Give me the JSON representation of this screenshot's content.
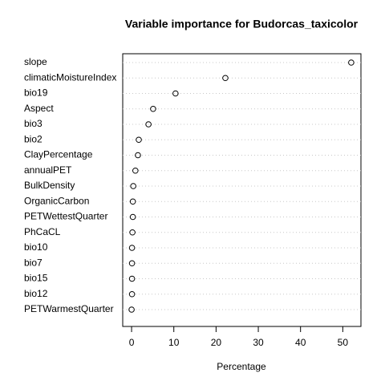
{
  "chart_data": {
    "type": "dot",
    "title": "Variable importance for Budorcas_taxicolor",
    "x_label": "Percentage",
    "categories": [
      "slope",
      "climaticMoistureIndex",
      "bio19",
      "Aspect",
      "bio3",
      "bio2",
      "ClayPercentage",
      "annualPET",
      "BulkDensity",
      "OrganicCarbon",
      "PETWettestQuarter",
      "PhCaCL",
      "bio10",
      "bio7",
      "bio15",
      "bio12",
      "PETWarmestQuarter"
    ],
    "values": [
      52.0,
      22.2,
      10.4,
      5.1,
      4.0,
      1.7,
      1.5,
      0.9,
      0.4,
      0.3,
      0.3,
      0.2,
      0.1,
      0.1,
      0.1,
      0.1,
      0.0
    ],
    "color": "#000000",
    "xlim": [
      -2.1,
      54.3
    ],
    "xticks": [
      0,
      10,
      20,
      30,
      40,
      50
    ],
    "grid": true
  }
}
